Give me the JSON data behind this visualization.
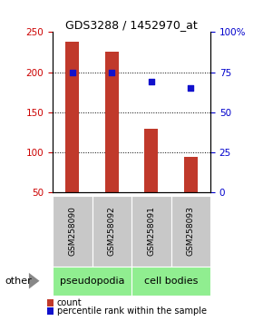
{
  "title": "GDS3288 / 1452970_at",
  "samples": [
    "GSM258090",
    "GSM258092",
    "GSM258091",
    "GSM258093"
  ],
  "counts": [
    238,
    226,
    130,
    95
  ],
  "percentiles": [
    75,
    75,
    69,
    65
  ],
  "group_labels": [
    "pseudopodia",
    "cell bodies"
  ],
  "group_colors": [
    "#90EE90",
    "#90EE90"
  ],
  "bar_color": "#C0392B",
  "dot_color": "#1111CC",
  "ylim_left": [
    50,
    250
  ],
  "ylim_right": [
    0,
    100
  ],
  "yticks_left": [
    50,
    100,
    150,
    200,
    250
  ],
  "yticks_right": [
    0,
    25,
    50,
    75,
    100
  ],
  "yticklabels_right": [
    "0",
    "25",
    "50",
    "75",
    "100%"
  ],
  "other_label": "other",
  "legend_count_label": "count",
  "legend_pct_label": "percentile rank within the sample",
  "bar_width": 0.35,
  "background_color": "#ffffff",
  "gray_box_color": "#C8C8C8",
  "title_fontsize": 9,
  "tick_fontsize": 7.5,
  "label_fontsize": 6.5,
  "group_fontsize": 8,
  "legend_fontsize": 7
}
